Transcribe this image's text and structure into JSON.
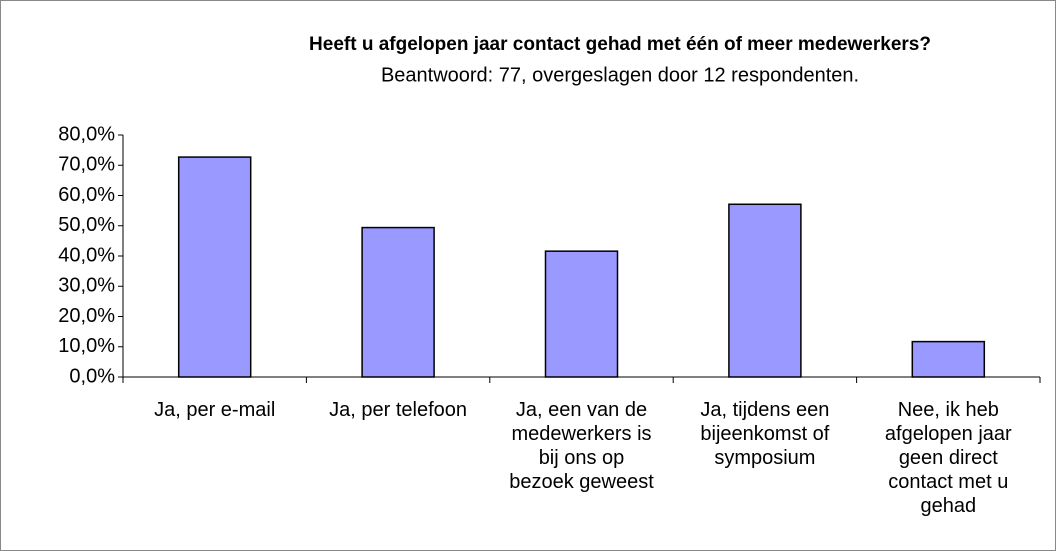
{
  "chart_data": {
    "type": "bar",
    "title": "Heeft u afgelopen jaar contact gehad met één of meer medewerkers?",
    "subtitle": "Beantwoord: 77, overgeslagen door 12 respondenten.",
    "categories": [
      "Ja, per e-mail",
      "Ja, per telefoon",
      "Ja, een van de medewerkers is bij ons op bezoek geweest",
      "Ja, tijdens een bijeenkomst of symposium",
      "Nee, ik heb afgelopen jaar geen direct contact met u gehad"
    ],
    "values": [
      72.7,
      49.4,
      41.6,
      57.1,
      11.7
    ],
    "color": "#9999ff",
    "ylim": [
      0,
      80
    ],
    "yticks": [
      {
        "value": 0,
        "label": "0,0%"
      },
      {
        "value": 10,
        "label": "10,0%"
      },
      {
        "value": 20,
        "label": "20,0%"
      },
      {
        "value": 30,
        "label": "30,0%"
      },
      {
        "value": 40,
        "label": "40,0%"
      },
      {
        "value": 50,
        "label": "50,0%"
      },
      {
        "value": 60,
        "label": "60,0%"
      },
      {
        "value": 70,
        "label": "70,0%"
      },
      {
        "value": 80,
        "label": "80,0%"
      }
    ],
    "grid": false
  }
}
